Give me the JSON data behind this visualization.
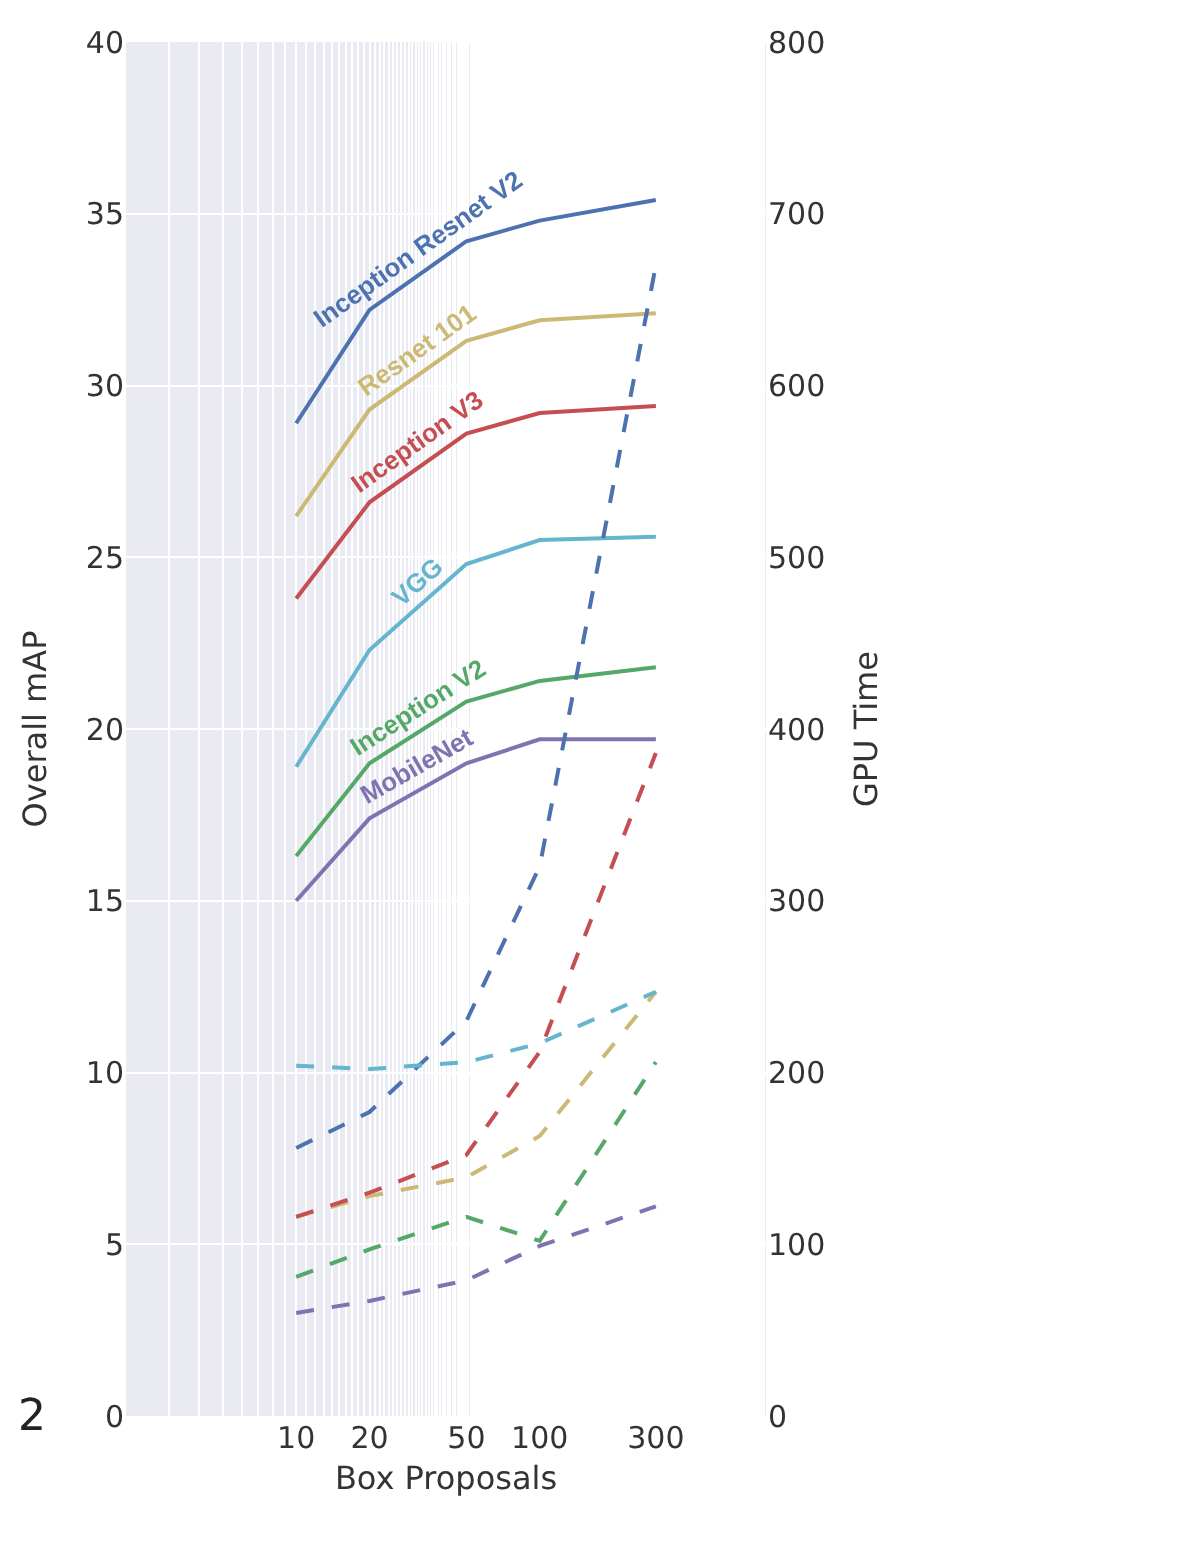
{
  "chart_data": {
    "type": "line",
    "xlabel": "Box Proposals",
    "ylabel": "Overall mAP",
    "y2label": "GPU Time",
    "log": "x",
    "grid": true,
    "legend": false,
    "marker": "none",
    "x": [
      10,
      20,
      50,
      100,
      300
    ],
    "xlim": [
      2,
      850
    ],
    "xticks": [
      10,
      20,
      50,
      100,
      300
    ],
    "ylim": [
      0,
      40
    ],
    "yticks": [
      0,
      5,
      10,
      15,
      20,
      25,
      30,
      35,
      40
    ],
    "y2lim": [
      0,
      800
    ],
    "y2ticks": [
      0,
      100,
      200,
      300,
      400,
      500,
      600,
      700,
      800
    ],
    "annotations": [
      "2"
    ],
    "series": [
      {
        "name": "Inception Resnet V2",
        "color": "#4c72b0",
        "values": [
          28.9,
          32.2,
          34.2,
          34.8,
          35.4
        ],
        "line_style": "solid"
      },
      {
        "name": "Resnet 101",
        "color": "#ccb974",
        "values": [
          26.2,
          29.3,
          31.3,
          31.9,
          32.1
        ],
        "line_style": "solid"
      },
      {
        "name": "Inception V3",
        "color": "#c44e52",
        "values": [
          23.8,
          26.6,
          28.6,
          29.2,
          29.4
        ],
        "line_style": "solid"
      },
      {
        "name": "VGG",
        "color": "#64b5cd",
        "values": [
          18.9,
          22.3,
          24.8,
          25.5,
          25.6
        ],
        "line_style": "solid"
      },
      {
        "name": "Inception V2",
        "color": "#55a868",
        "values": [
          16.3,
          19.0,
          20.8,
          21.4,
          21.8
        ],
        "line_style": "solid"
      },
      {
        "name": "MobileNet",
        "color": "#8172b2",
        "values": [
          15.0,
          17.4,
          19.0,
          19.7,
          19.7
        ],
        "line_style": "solid"
      },
      {
        "color": "#4c72b0",
        "axis": "y2",
        "values": [
          156,
          177,
          230,
          320,
          670
        ],
        "line_style": "dashed"
      },
      {
        "color": "#ccb974",
        "axis": "y2",
        "values": [
          116,
          128,
          139,
          163,
          247
        ],
        "line_style": "dashed"
      },
      {
        "color": "#c44e52",
        "axis": "y2",
        "values": [
          116,
          130,
          152,
          212,
          386
        ],
        "line_style": "dashed"
      },
      {
        "color": "#64b5cd",
        "axis": "y2",
        "values": [
          204,
          202,
          206,
          217,
          247
        ],
        "line_style": "dashed"
      },
      {
        "color": "#55a868",
        "axis": "y2",
        "values": [
          81,
          97,
          116,
          102,
          206
        ],
        "line_style": "dashed"
      },
      {
        "color": "#8172b2",
        "axis": "y2",
        "values": [
          60,
          67,
          79,
          99,
          122
        ],
        "line_style": "dashed"
      }
    ]
  }
}
